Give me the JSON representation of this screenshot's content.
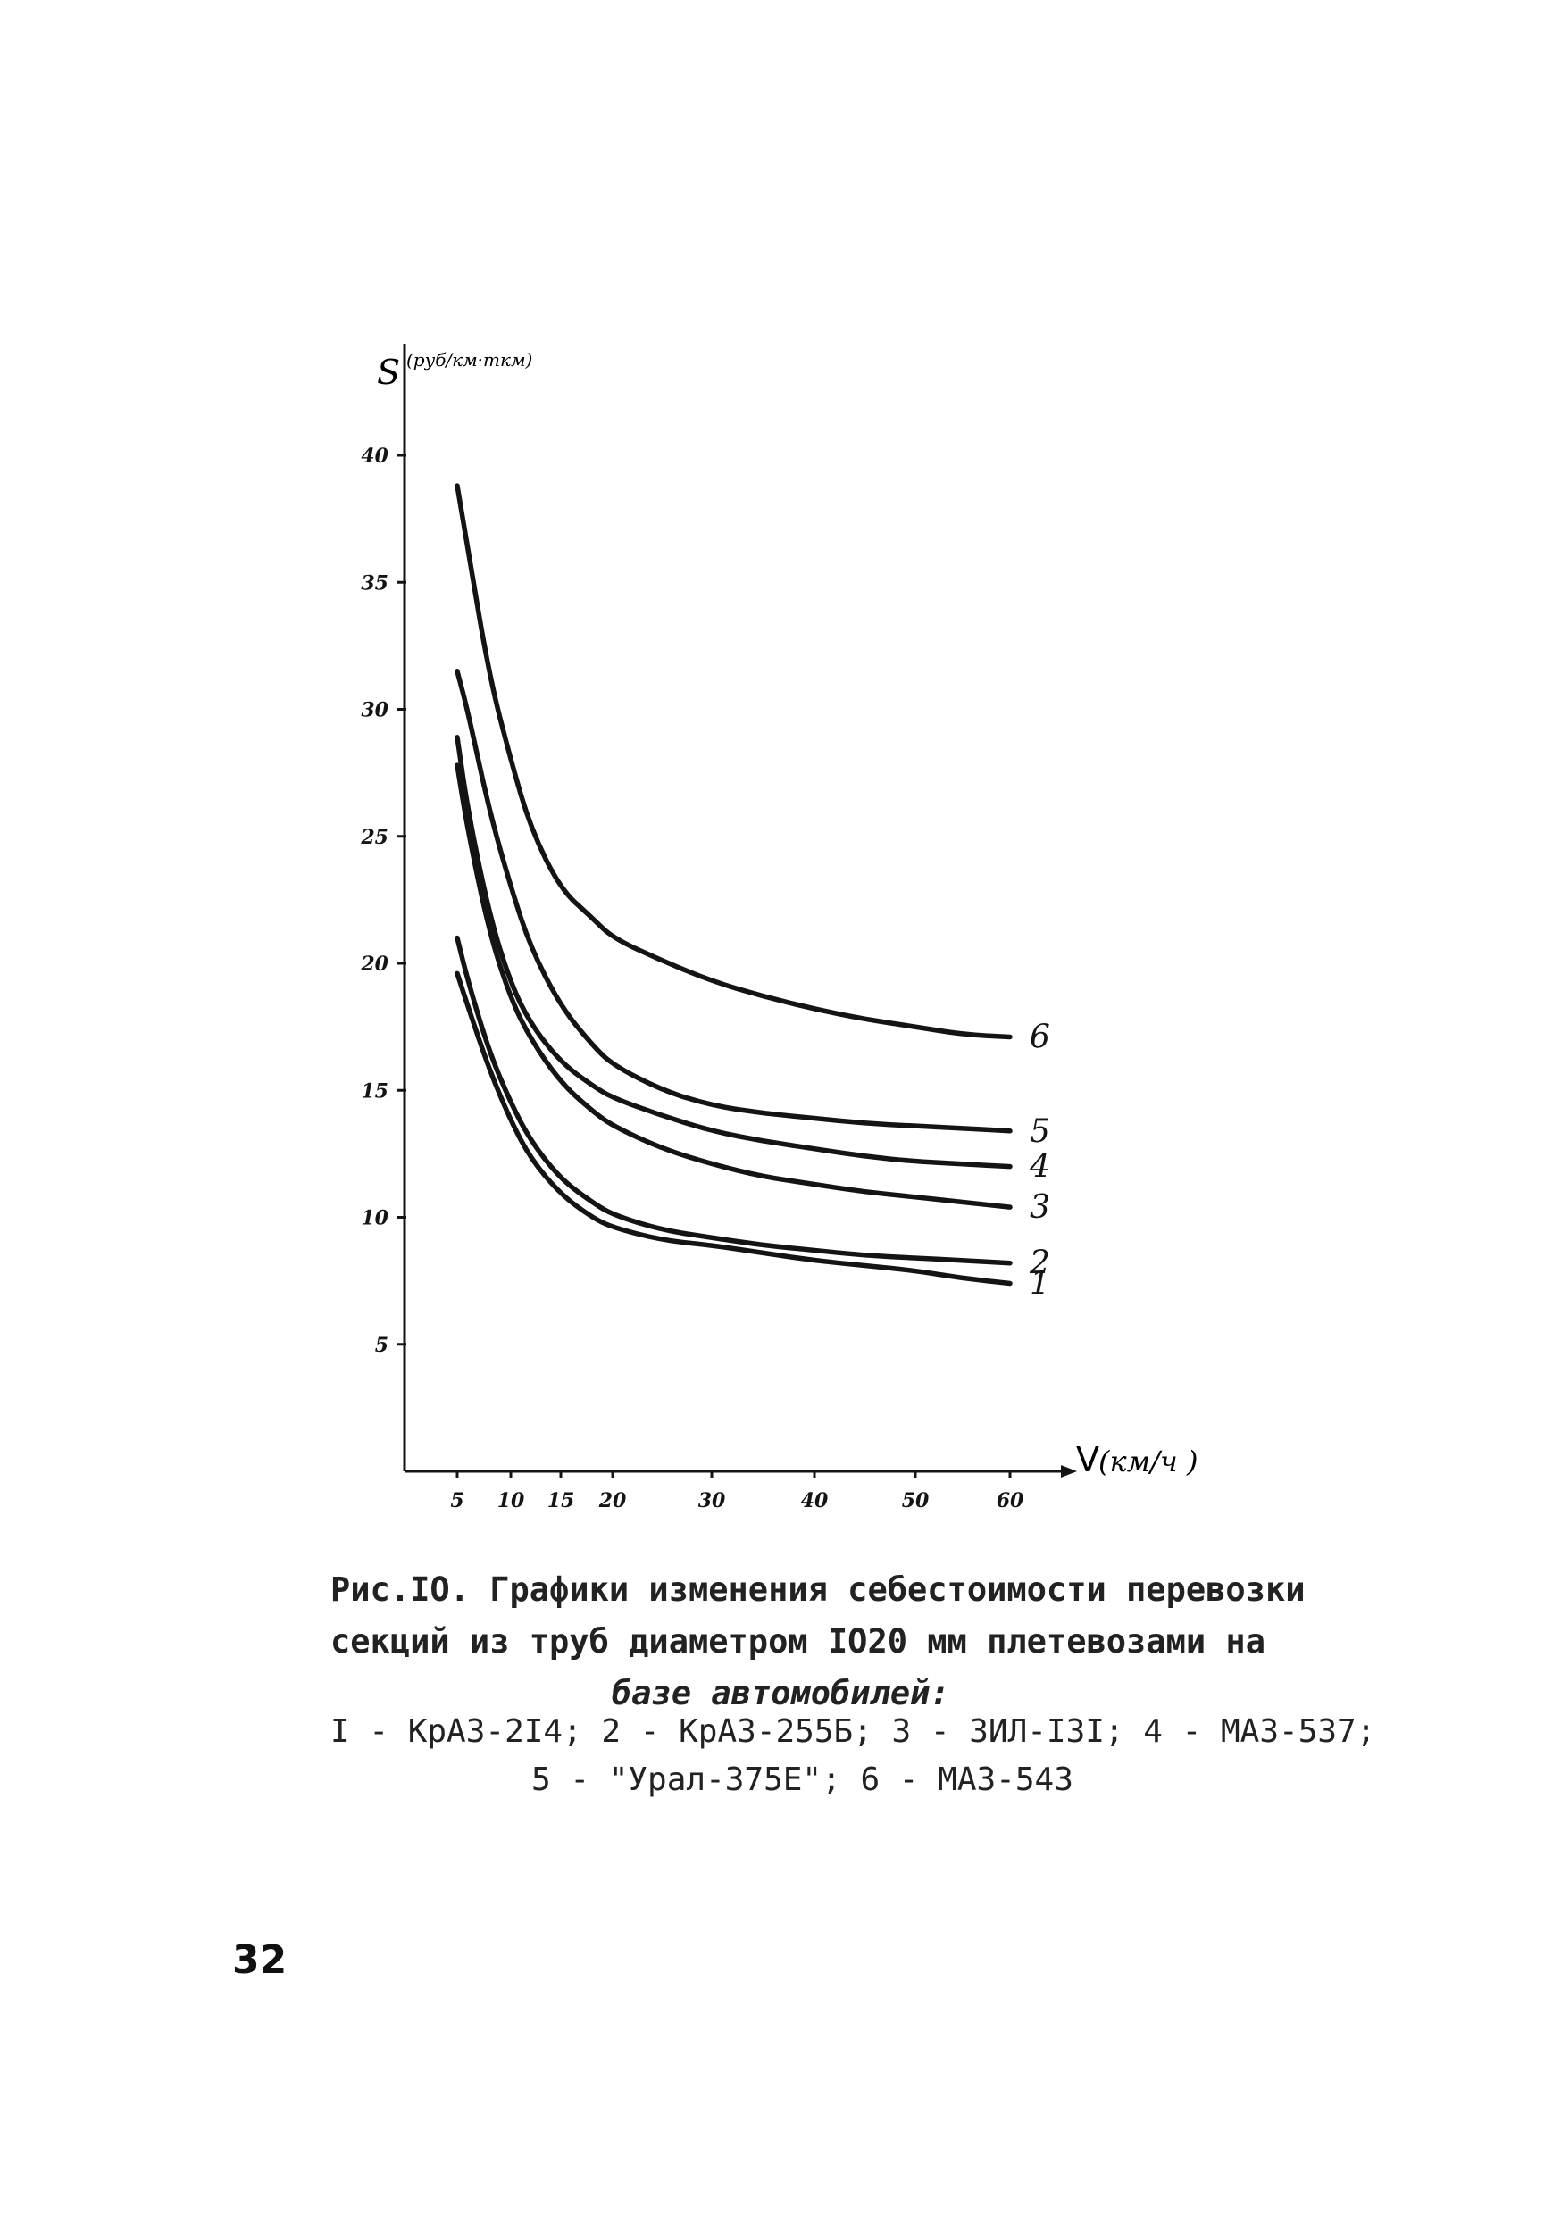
{
  "chart_data": {
    "type": "line",
    "ylabel": "S",
    "ylabel_unit": "(руб/км·ткм)",
    "xlabel": "V",
    "xlabel_unit": "(км/ч )",
    "xlim": [
      0,
      60
    ],
    "ylim": [
      0,
      43
    ],
    "x_ticks": [
      5,
      10,
      15,
      20,
      30,
      40,
      50,
      60
    ],
    "x_tick_labels": [
      "5",
      "10",
      "15",
      "20",
      "30",
      "40",
      "50",
      "60"
    ],
    "y_ticks": [
      5,
      10,
      15,
      20,
      25,
      30,
      35,
      40
    ],
    "y_tick_labels": [
      "5",
      "10",
      "15",
      "20",
      "25",
      "30",
      "35",
      "40"
    ],
    "grid": false,
    "series": [
      {
        "name": "1",
        "x": [
          5,
          6,
          8,
          10,
          12,
          15,
          18,
          20,
          25,
          30,
          35,
          40,
          45,
          50,
          55,
          60
        ],
        "y": [
          19.6,
          18.3,
          15.8,
          13.8,
          12.3,
          10.9,
          10.0,
          9.6,
          9.1,
          8.9,
          8.6,
          8.3,
          8.1,
          7.9,
          7.6,
          7.4
        ]
      },
      {
        "name": "2",
        "x": [
          5,
          6,
          8,
          10,
          12,
          15,
          18,
          20,
          25,
          30,
          35,
          40,
          45,
          50,
          55,
          60
        ],
        "y": [
          21.0,
          19.3,
          16.5,
          14.5,
          13.0,
          11.5,
          10.6,
          10.1,
          9.5,
          9.2,
          8.9,
          8.7,
          8.5,
          8.4,
          8.3,
          8.2
        ]
      },
      {
        "name": "3",
        "x": [
          5,
          6,
          8,
          10,
          12,
          15,
          18,
          20,
          25,
          30,
          35,
          40,
          45,
          50,
          55,
          60
        ],
        "y": [
          27.8,
          25.2,
          21.2,
          18.6,
          17.0,
          15.3,
          14.2,
          13.6,
          12.7,
          12.1,
          11.6,
          11.3,
          11.0,
          10.8,
          10.6,
          10.4
        ]
      },
      {
        "name": "4",
        "x": [
          5,
          6,
          8,
          10,
          12,
          15,
          18,
          20,
          25,
          30,
          35,
          40,
          45,
          50,
          55,
          60
        ],
        "y": [
          28.9,
          26.0,
          21.9,
          19.2,
          17.6,
          16.1,
          15.2,
          14.7,
          14.0,
          13.4,
          13.0,
          12.7,
          12.4,
          12.2,
          12.1,
          12.0
        ]
      },
      {
        "name": "5",
        "x": [
          5,
          6,
          8,
          10,
          12,
          15,
          18,
          20,
          25,
          30,
          35,
          40,
          45,
          50,
          55,
          60
        ],
        "y": [
          31.5,
          29.9,
          26.0,
          23.0,
          20.6,
          18.3,
          16.8,
          16.0,
          15.0,
          14.4,
          14.1,
          13.9,
          13.7,
          13.6,
          13.5,
          13.4
        ]
      },
      {
        "name": "6",
        "x": [
          5,
          6,
          8,
          10,
          12,
          15,
          18,
          20,
          25,
          30,
          35,
          40,
          45,
          50,
          55,
          60
        ],
        "y": [
          38.8,
          36.3,
          31.3,
          28.0,
          25.3,
          22.9,
          21.8,
          21.0,
          20.1,
          19.3,
          18.7,
          18.2,
          17.8,
          17.5,
          17.2,
          17.1
        ]
      }
    ]
  },
  "caption": {
    "line1": "Рис.IO. Графики изменения себестоимости перевозки",
    "line2": "секций из труб диаметром IO20 мм плетевозами  на",
    "line3": "базе автомобилей:",
    "legend_line1": "I - КрАЗ-2I4; 2 - КрАЗ-255Б; 3 - ЗИЛ-I3I; 4 - МАЗ-537;",
    "legend_line2": "5 - \"Урал-375Е\"; 6 - МАЗ-543"
  },
  "page_number": "32",
  "colors": {
    "ink": "#141414",
    "paper": "#ffffff"
  }
}
